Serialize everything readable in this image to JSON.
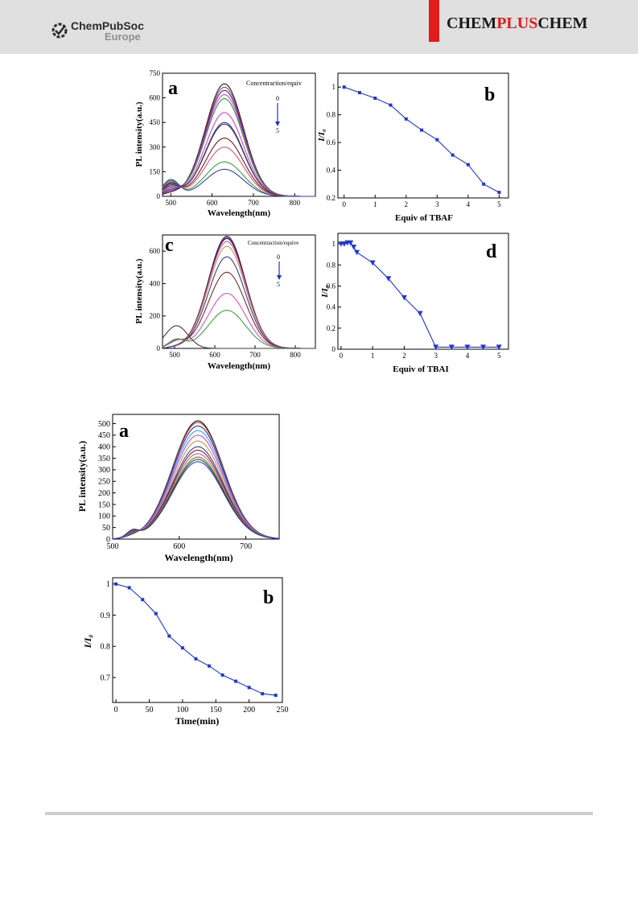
{
  "header": {
    "logo_line1": "ChemPubSoc",
    "logo_line2": "Europe",
    "journal_part1": "CHEM",
    "journal_part2": "PLUS",
    "journal_part3": "CHEM",
    "accent": "#e21b1b"
  },
  "figures": {
    "fig1": {
      "a": {
        "panel": "a",
        "xlabel": "Wavelength(nm)",
        "ylabel": "PL intensity(a.u.)",
        "legend_title": "Concentraction/equiv",
        "legend_top": "0",
        "legend_bottom": "5"
      },
      "b": {
        "panel": "b",
        "xlabel": "Equiv of TBAF",
        "ylabel": "I/I₀"
      },
      "c": {
        "panel": "c",
        "xlabel": "Wavelength(nm)",
        "ylabel": "PL intensity(a.u.)",
        "legend_title": "Concentraction/equive",
        "legend_top": "0",
        "legend_bottom": "5"
      },
      "d": {
        "panel": "d",
        "xlabel": "Equiv of TBAI",
        "ylabel": "I/I₀"
      }
    },
    "fig2": {
      "a": {
        "panel": "a",
        "xlabel": "Wavelength(nm)",
        "ylabel": "PL intensity(a.u.)"
      },
      "b": {
        "panel": "b",
        "xlabel": "Time(min)",
        "ylabel": "I/I₀"
      }
    }
  },
  "chart_data": [
    {
      "id": "fig1a",
      "type": "line",
      "xlim": [
        480,
        850
      ],
      "ylim": [
        0,
        750
      ],
      "xticks": [
        500,
        600,
        700,
        800
      ],
      "yticks": [
        0,
        150,
        300,
        450,
        600,
        750
      ],
      "emission_peak_nm": 630,
      "series_peak_values": [
        685,
        665,
        645,
        620,
        595,
        510,
        450,
        440,
        355,
        300,
        210,
        165
      ],
      "secondary_band_nm": 500,
      "series_colors": [
        "#1a1a1a",
        "#c0392b",
        "#1f2fd0",
        "#e040c0",
        "#2a9a2a",
        "#d040d0",
        "#3a3aa0",
        "#3a3a3a",
        "#7a1a1a",
        "#e05080",
        "#3aa03a",
        "#3040c0"
      ]
    },
    {
      "id": "fig1b",
      "type": "line",
      "xlim": [
        -0.2,
        5.3
      ],
      "ylim": [
        0.2,
        1.1
      ],
      "xticks": [
        0,
        1,
        2,
        3,
        4,
        5
      ],
      "yticks": [
        0.2,
        0.4,
        0.6,
        0.8,
        1.0
      ],
      "x": [
        0,
        0.5,
        1,
        1.5,
        2,
        2.5,
        3,
        3.5,
        4,
        4.5,
        5
      ],
      "y": [
        1.0,
        0.96,
        0.92,
        0.87,
        0.77,
        0.69,
        0.62,
        0.51,
        0.44,
        0.3,
        0.24
      ],
      "color": "#1f35e0"
    },
    {
      "id": "fig1c",
      "type": "line",
      "xlim": [
        470,
        850
      ],
      "ylim": [
        0,
        700
      ],
      "xticks": [
        500,
        600,
        700,
        800
      ],
      "yticks": [
        0,
        200,
        400,
        600
      ],
      "emission_peak_nm": 630,
      "series_peak_values": [
        692,
        685,
        678,
        660,
        630,
        565,
        470,
        340,
        235,
        5
      ],
      "secondary_band_nm": 505,
      "series_colors": [
        "#1f2fd0",
        "#c0392b",
        "#1a1a1a",
        "#e040c0",
        "#b0a040",
        "#3a3aa0",
        "#7a2a2a",
        "#e050c0",
        "#3aa03a",
        "#3a3a3a"
      ]
    },
    {
      "id": "fig1d",
      "type": "line",
      "xlim": [
        -0.1,
        5.3
      ],
      "ylim": [
        0,
        1.1
      ],
      "xticks": [
        0,
        1,
        2,
        3,
        4,
        5
      ],
      "yticks": [
        0,
        0.2,
        0.4,
        0.6,
        0.8,
        1.0
      ],
      "x": [
        0,
        0.1,
        0.2,
        0.3,
        0.4,
        0.5,
        1,
        1.5,
        2,
        2.5,
        3,
        3.5,
        4,
        4.5,
        5
      ],
      "y": [
        1.0,
        1.0,
        1.01,
        1.01,
        0.97,
        0.92,
        0.82,
        0.67,
        0.49,
        0.34,
        0.02,
        0.02,
        0.02,
        0.02,
        0.02
      ],
      "color": "#1f35e0"
    },
    {
      "id": "fig2a",
      "type": "line",
      "xlim": [
        500,
        750
      ],
      "ylim": [
        0,
        540
      ],
      "xticks": [
        500,
        600,
        700
      ],
      "yticks": [
        0,
        50,
        100,
        150,
        200,
        250,
        300,
        350,
        400,
        450,
        500
      ],
      "emission_peak_nm": 628,
      "series_peak_values": [
        512,
        505,
        490,
        470,
        450,
        425,
        400,
        385,
        370,
        355,
        345,
        335
      ],
      "secondary_band_nm": 530,
      "series_colors": [
        "#1a1a1a",
        "#c0392b",
        "#1f2fd0",
        "#3aa0d0",
        "#e040c0",
        "#b0a040",
        "#3a3aa0",
        "#7a2a2a",
        "#e05080",
        "#2a9a2a",
        "#3a3a3a",
        "#3040c0"
      ]
    },
    {
      "id": "fig2b",
      "type": "line",
      "xlim": [
        -5,
        250
      ],
      "ylim": [
        0.62,
        1.02
      ],
      "xticks": [
        0,
        50,
        100,
        150,
        200,
        250
      ],
      "yticks": [
        0.7,
        0.8,
        0.9,
        1.0
      ],
      "x": [
        0,
        20,
        40,
        60,
        80,
        100,
        120,
        140,
        160,
        180,
        200,
        220,
        240
      ],
      "y": [
        1.0,
        0.988,
        0.95,
        0.905,
        0.833,
        0.795,
        0.76,
        0.737,
        0.708,
        0.688,
        0.668,
        0.648,
        0.643
      ],
      "color": "#1f35e0"
    }
  ]
}
